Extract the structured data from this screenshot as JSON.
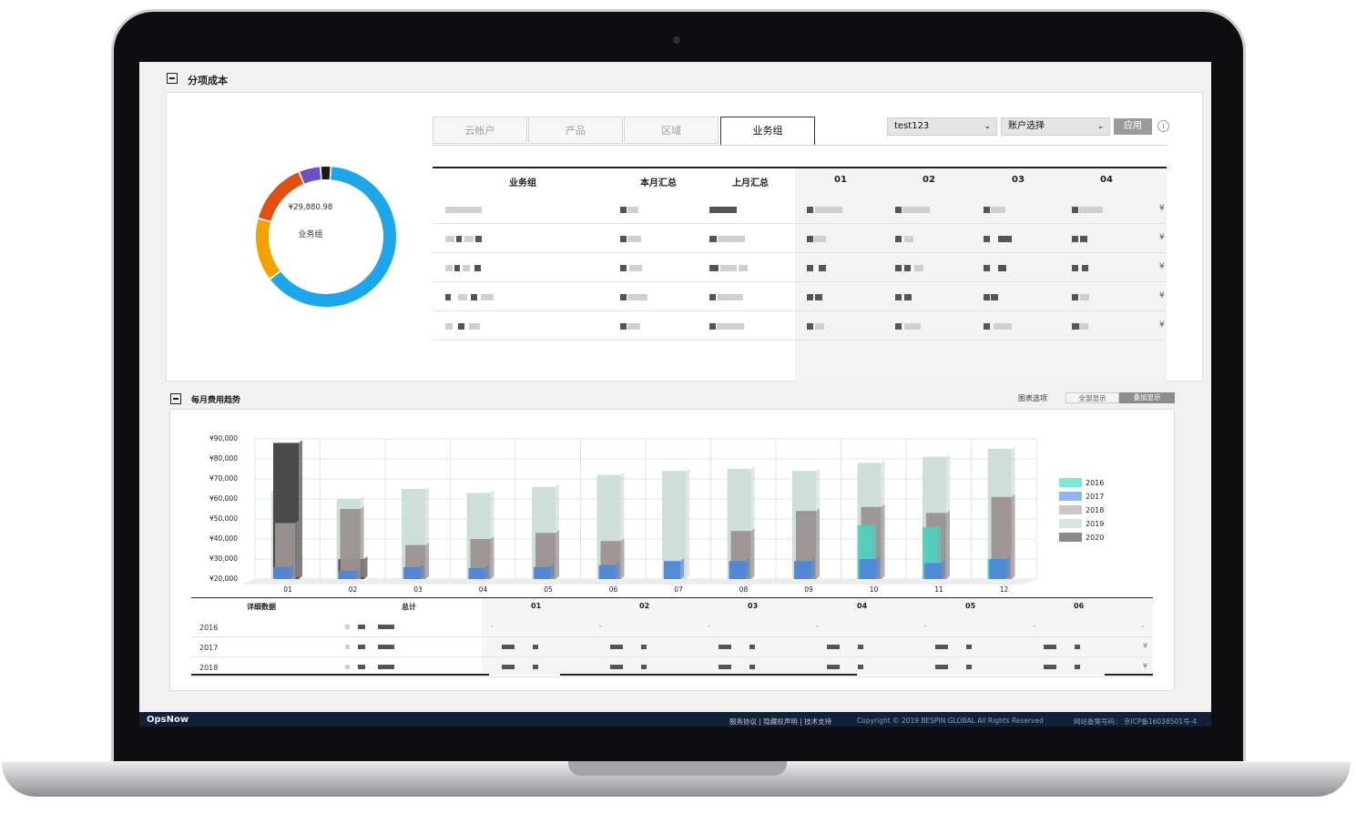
{
  "cost_breakdown": {
    "title": "分项成本",
    "tabs": [
      "云帐户",
      "产品",
      "区域",
      "业务组"
    ],
    "active_tab": 3,
    "account_select": "test123",
    "account_picker": "账户选择",
    "apply_label": "应用",
    "info_icon": "info-icon",
    "donut": {
      "total": "¥29,880.98",
      "label": "业务组",
      "slices": [
        {
          "value": 0.636,
          "color": "#1da7ea"
        },
        {
          "value": 0.145,
          "color": "#f2a100"
        },
        {
          "value": 0.145,
          "color": "#e24f12"
        },
        {
          "value": 0.05,
          "color": "#6c4fc0"
        },
        {
          "value": 0.024,
          "color": "#1b1b1b"
        }
      ]
    },
    "table": {
      "headers": [
        "业务组",
        "本月汇总",
        "上月汇总",
        "01",
        "02",
        "03",
        "04"
      ],
      "row_cell_text": "¥"
    }
  },
  "monthly_trend": {
    "title": "每月费用趋势",
    "chart_options_label": "图表选项",
    "view_all": "全部显示",
    "view_stacked": "叠加显示",
    "legend": [
      {
        "name": "2016",
        "color": "#7ee8d7"
      },
      {
        "name": "2017",
        "color": "#8fb6ee"
      },
      {
        "name": "2018",
        "color": "#cdc8c8"
      },
      {
        "name": "2019",
        "color": "#d6e4df"
      },
      {
        "name": "2020",
        "color": "#8a8a8a"
      }
    ],
    "detail_headers": [
      "详细数据",
      "总计",
      "01",
      "02",
      "03",
      "04",
      "05",
      "06"
    ],
    "detail_rows": [
      "2016",
      "2017",
      "2018"
    ],
    "dash": "-",
    "yen": "¥"
  },
  "chart_data": {
    "type": "bar",
    "categories": [
      "01",
      "02",
      "03",
      "04",
      "05",
      "06",
      "07",
      "08",
      "09",
      "10",
      "11",
      "12"
    ],
    "ylim": [
      20000,
      90000
    ],
    "yticks": [
      "¥90,000",
      "¥80,000",
      "¥70,000",
      "¥60,000",
      "¥50,000",
      "¥40,000",
      "¥30,000",
      "¥20,000"
    ],
    "series": [
      {
        "name": "2016",
        "values": [
          null,
          null,
          null,
          null,
          null,
          null,
          null,
          null,
          null,
          47000,
          46000,
          30000
        ]
      },
      {
        "name": "2017",
        "values": [
          26000,
          24000,
          26000,
          25500,
          26000,
          27000,
          29000,
          29000,
          29000,
          30000,
          28000,
          30000
        ]
      },
      {
        "name": "2018",
        "values": [
          48000,
          55000,
          37000,
          40000,
          43000,
          39000,
          null,
          44000,
          54000,
          56000,
          53000,
          61000
        ]
      },
      {
        "name": "2019",
        "values": [
          64000,
          60000,
          65000,
          63000,
          66000,
          72000,
          74000,
          75000,
          74000,
          78000,
          81000,
          85000
        ]
      },
      {
        "name": "2020",
        "values": [
          88000,
          30000,
          null,
          null,
          null,
          null,
          null,
          null,
          null,
          null,
          null,
          null
        ]
      }
    ]
  },
  "footer": {
    "logo": "OpsNow",
    "links": "服务协议 | 隐藏权声明 | 技术支持",
    "copyright": "Copyright © 2019 BESPIN GLOBAL All Rights Reserved",
    "icp": "网站备案号码： 京ICP备16038501号-4"
  }
}
